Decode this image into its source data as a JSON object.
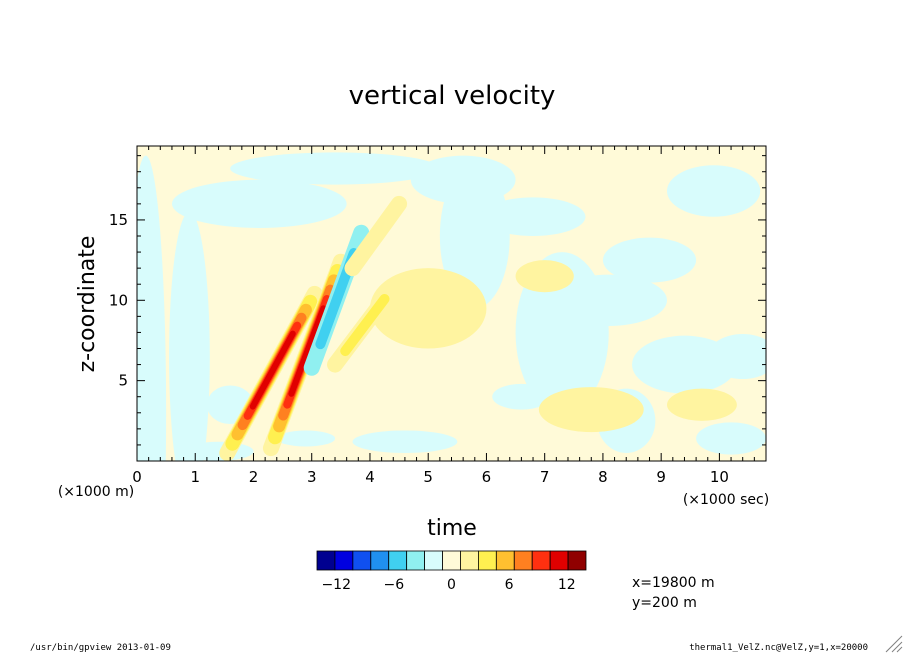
{
  "chart_data": {
    "type": "heatmap",
    "title": "vertical velocity",
    "xlabel": "time",
    "ylabel": "z-coordinate",
    "x_unit": "(×1000 sec)",
    "y_unit": "(×1000 m)",
    "xlim": [
      0,
      10.8
    ],
    "ylim": [
      0,
      19.6
    ],
    "xticks": [
      0,
      1,
      2,
      3,
      4,
      5,
      6,
      7,
      8,
      9,
      10
    ],
    "yticks": [
      5,
      10,
      15
    ],
    "colorbar": {
      "levels": [
        -14,
        -12,
        -10,
        -8,
        -6,
        -4,
        -2,
        0,
        2,
        4,
        6,
        8,
        10,
        12,
        14
      ],
      "tick_labels": [
        "-12",
        "-6",
        "0",
        "6",
        "12"
      ],
      "tick_values": [
        -12,
        -6,
        0,
        6,
        12
      ],
      "colors": [
        "#000090",
        "#0000e0",
        "#1050f0",
        "#2090f0",
        "#40d0f0",
        "#90f0f0",
        "#d8fcfc",
        "#fffad8",
        "#fff4a0",
        "#fff050",
        "#ffc030",
        "#ff8020",
        "#ff3010",
        "#e00000",
        "#900000"
      ]
    },
    "features": [
      {
        "shape": "streak",
        "x0": 1.55,
        "z0": 0.5,
        "x1": 3.05,
        "z1": 10.4,
        "peak": 12
      },
      {
        "shape": "streak",
        "x0": 2.3,
        "z0": 0.8,
        "x1": 3.5,
        "z1": 12.4,
        "peak": 12
      },
      {
        "shape": "streak",
        "x0": 3.0,
        "z0": 5.8,
        "x1": 3.85,
        "z1": 14.2,
        "peak": -4
      },
      {
        "shape": "streak",
        "x0": 3.4,
        "z0": 6.0,
        "x1": 4.4,
        "z1": 10.8,
        "peak": 3
      },
      {
        "shape": "streak",
        "x0": 3.7,
        "z0": 12.0,
        "x1": 4.5,
        "z1": 16.0,
        "peak": 2
      }
    ]
  },
  "annotations": {
    "x_position": "x=19800 m",
    "y_position": "y=200 m",
    "footer_left": "/usr/bin/gpview  2013-01-09",
    "footer_right": "thermal1_VelZ.nc@VelZ,y=1,x=20000"
  }
}
